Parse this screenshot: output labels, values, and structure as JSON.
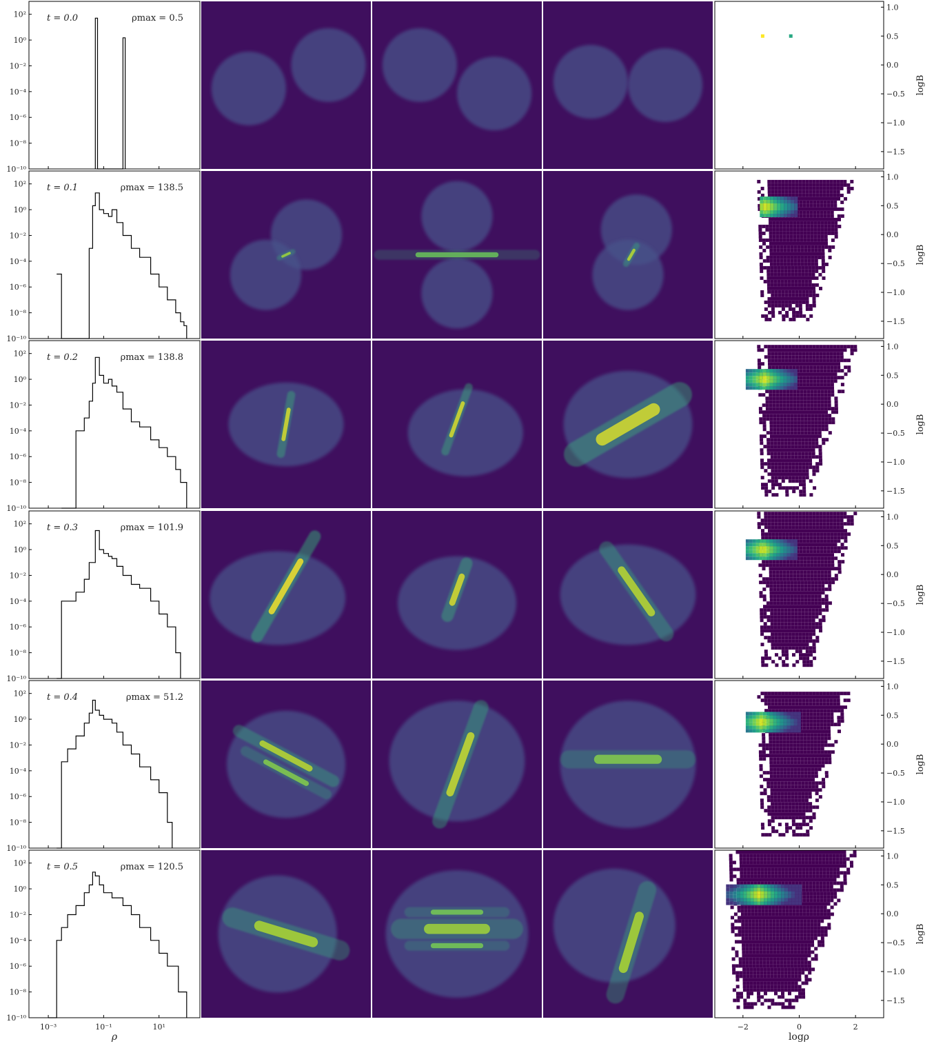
{
  "figure": {
    "x_label_hist": "ρ",
    "x_label_phase": "logρ",
    "y_label_phase": "logB",
    "hist_ytick_labels": [
      "10²",
      "10⁰",
      "10⁻²",
      "10⁻⁴",
      "10⁻⁶",
      "10⁻⁸",
      "10⁻¹⁰"
    ],
    "hist_xtick_labels": [
      "10⁻³",
      "10⁻¹",
      "10¹"
    ],
    "phase_ytick_labels": [
      "1.0",
      "0.5",
      "0.0",
      "−0.5",
      "−1.0",
      "−1.5"
    ],
    "phase_xtick_labels": [
      "−2",
      "0",
      "2"
    ]
  },
  "rows": [
    {
      "t_label": "t = 0.0",
      "rho_label": "ρmax = 0.5"
    },
    {
      "t_label": "t = 0.1",
      "rho_label": "ρmax = 138.5"
    },
    {
      "t_label": "t = 0.2",
      "rho_label": "ρmax = 138.8"
    },
    {
      "t_label": "t = 0.3",
      "rho_label": "ρmax = 101.9"
    },
    {
      "t_label": "t = 0.4",
      "rho_label": "ρmax = 51.2"
    },
    {
      "t_label": "t = 0.5",
      "rho_label": "ρmax = 120.5"
    }
  ],
  "colors": {
    "panel_bg": "#3f0f5e",
    "cloud": "#46518a",
    "filament": "#35b779",
    "peak": "#fde725",
    "hist_line": "#000000"
  },
  "chart_data": [
    {
      "type": "line",
      "title": "",
      "xlabel": "ρ",
      "ylabel": "",
      "xscale": "log",
      "yscale": "log",
      "xlim": [
        0.0002,
        300
      ],
      "ylim": [
        1e-10,
        1000
      ],
      "series": [
        {
          "label_index": 0,
          "x": [
            0.05,
            0.05,
            0.06,
            0.06,
            0.5,
            0.5,
            0.6,
            0.6
          ],
          "y": [
            1e-10,
            50,
            50,
            1e-10,
            1e-10,
            1.5,
            1.5,
            1e-10
          ]
        },
        {
          "label_index": 1,
          "x": [
            0.002,
            0.003,
            0.005,
            0.03,
            0.04,
            0.05,
            0.07,
            0.1,
            0.15,
            0.2,
            0.3,
            0.5,
            1,
            2,
            5,
            10,
            20,
            40,
            60,
            80,
            100
          ],
          "y": [
            1e-05,
            1e-10,
            1e-10,
            0.001,
            2,
            20,
            1,
            0.5,
            0.3,
            1,
            0.1,
            0.01,
            0.001,
            0.0002,
            1e-05,
            1e-06,
            1e-07,
            1e-08,
            2e-09,
            1e-09,
            1e-10
          ]
        },
        {
          "label_index": 2,
          "x": [
            0.003,
            0.01,
            0.02,
            0.03,
            0.04,
            0.05,
            0.07,
            0.1,
            0.15,
            0.2,
            0.3,
            0.5,
            1,
            2,
            5,
            10,
            20,
            40,
            60,
            100
          ],
          "y": [
            1e-10,
            0.0001,
            0.001,
            0.02,
            0.5,
            50,
            2,
            0.5,
            1,
            0.3,
            0.1,
            0.005,
            0.0005,
            0.0002,
            2e-05,
            5e-06,
            1e-06,
            1e-07,
            1e-08,
            1e-10
          ]
        },
        {
          "label_index": 3,
          "x": [
            0.002,
            0.003,
            0.005,
            0.01,
            0.02,
            0.03,
            0.05,
            0.07,
            0.1,
            0.15,
            0.2,
            0.3,
            0.5,
            1,
            2,
            5,
            10,
            20,
            40,
            60
          ],
          "y": [
            1e-10,
            0.0001,
            0.0001,
            0.0005,
            0.005,
            0.1,
            30,
            1,
            0.5,
            0.3,
            0.2,
            0.05,
            0.01,
            0.002,
            0.001,
            0.0001,
            1e-05,
            1e-06,
            1e-08,
            1e-10
          ]
        },
        {
          "label_index": 4,
          "x": [
            0.002,
            0.003,
            0.005,
            0.01,
            0.02,
            0.03,
            0.04,
            0.05,
            0.07,
            0.1,
            0.2,
            0.3,
            0.5,
            1,
            2,
            5,
            10,
            20,
            30
          ],
          "y": [
            1e-10,
            0.0005,
            0.005,
            0.05,
            0.5,
            3,
            30,
            5,
            2,
            1,
            0.5,
            0.1,
            0.01,
            0.002,
            0.0002,
            2e-05,
            2e-06,
            1e-08,
            1e-10
          ]
        },
        {
          "label_index": 5,
          "x": [
            0.001,
            0.002,
            0.003,
            0.005,
            0.01,
            0.02,
            0.03,
            0.04,
            0.05,
            0.07,
            0.1,
            0.2,
            0.5,
            1,
            2,
            5,
            10,
            20,
            50,
            100
          ],
          "y": [
            1e-10,
            0.0001,
            0.001,
            0.01,
            0.05,
            0.5,
            2,
            20,
            10,
            2,
            0.5,
            0.2,
            0.05,
            0.01,
            0.001,
            0.0001,
            1e-05,
            1e-06,
            1e-08,
            1e-10
          ]
        }
      ]
    },
    {
      "type": "heatmap",
      "title": "",
      "xlabel": "logρ",
      "ylabel": "logB",
      "xlim": [
        -3.0,
        3.0
      ],
      "ylim": [
        -1.8,
        1.1
      ],
      "colormap": "viridis",
      "panels": [
        {
          "row": 0,
          "points": [
            {
              "x": -1.3,
              "y": 0.5,
              "level": 1.0
            },
            {
              "x": -0.3,
              "y": 0.5,
              "level": 0.6
            }
          ]
        },
        {
          "row": 1,
          "region": {
            "x0": -1.5,
            "x1": 1.9,
            "yb": -1.5,
            "yt": 0.9
          },
          "hotspot": {
            "x0": -1.4,
            "x1": -0.1,
            "y0": 0.3,
            "y1": 0.6,
            "peak_x": -1.25
          }
        },
        {
          "row": 2,
          "region": {
            "x0": -1.5,
            "x1": 2.0,
            "yb": -1.6,
            "yt": 1.0
          },
          "hotspot": {
            "x0": -1.9,
            "x1": -0.1,
            "y0": 0.25,
            "y1": 0.55,
            "peak_x": -1.3
          }
        },
        {
          "row": 3,
          "region": {
            "x0": -1.5,
            "x1": 2.0,
            "yb": -1.6,
            "yt": 1.05
          },
          "hotspot": {
            "x0": -1.9,
            "x1": -0.1,
            "y0": 0.25,
            "y1": 0.55,
            "peak_x": -1.35
          }
        },
        {
          "row": 4,
          "region": {
            "x0": -1.5,
            "x1": 1.8,
            "yb": -1.6,
            "yt": 0.9
          },
          "hotspot": {
            "x0": -1.9,
            "x1": 0.0,
            "y0": 0.2,
            "y1": 0.5,
            "peak_x": -1.4
          }
        },
        {
          "row": 5,
          "region": {
            "x0": -2.5,
            "x1": 2.0,
            "yb": -1.65,
            "yt": 1.05
          },
          "hotspot": {
            "x0": -2.6,
            "x1": 0.0,
            "y0": 0.15,
            "y1": 0.45,
            "peak_x": -1.5
          }
        }
      ]
    },
    {
      "type": "image",
      "title": "",
      "description_colormap": "viridis",
      "panels": [
        {
          "row": 0,
          "col": 0,
          "clouds": [
            [
              0.28,
              0.52,
              0.22,
              0.22
            ],
            [
              0.75,
              0.38,
              0.22,
              0.22
            ]
          ],
          "streaks": []
        },
        {
          "row": 0,
          "col": 1,
          "clouds": [
            [
              0.28,
              0.38,
              0.22,
              0.22
            ],
            [
              0.72,
              0.55,
              0.22,
              0.22
            ]
          ],
          "streaks": []
        },
        {
          "row": 0,
          "col": 2,
          "clouds": [
            [
              0.28,
              0.48,
              0.22,
              0.22
            ],
            [
              0.72,
              0.5,
              0.22,
              0.22
            ]
          ],
          "streaks": []
        },
        {
          "row": 1,
          "col": 0,
          "clouds": [
            [
              0.62,
              0.38,
              0.21,
              0.21
            ],
            [
              0.38,
              0.62,
              0.21,
              0.21
            ]
          ],
          "streaks": [
            [
              0.5,
              0.5,
              0.12,
              0.005,
              -25,
              0.7
            ]
          ]
        },
        {
          "row": 1,
          "col": 1,
          "clouds": [
            [
              0.5,
              0.27,
              0.21,
              0.21
            ],
            [
              0.5,
              0.73,
              0.21,
              0.21
            ]
          ],
          "streaks": [
            [
              0.5,
              0.5,
              0.98,
              0.01,
              0,
              0.5
            ]
          ]
        },
        {
          "row": 1,
          "col": 2,
          "clouds": [
            [
              0.55,
              0.35,
              0.21,
              0.21
            ],
            [
              0.5,
              0.62,
              0.21,
              0.21
            ]
          ],
          "streaks": [
            [
              0.52,
              0.5,
              0.16,
              0.006,
              -60,
              0.8
            ]
          ]
        },
        {
          "row": 2,
          "col": 0,
          "clouds": [
            [
              0.5,
              0.5,
              0.34,
              0.25
            ]
          ],
          "streaks": [
            [
              0.5,
              0.5,
              0.4,
              0.008,
              -80,
              0.9
            ]
          ]
        },
        {
          "row": 2,
          "col": 1,
          "clouds": [
            [
              0.55,
              0.55,
              0.34,
              0.26
            ]
          ],
          "streaks": [
            [
              0.5,
              0.47,
              0.45,
              0.008,
              -70,
              0.9
            ]
          ]
        },
        {
          "row": 2,
          "col": 2,
          "clouds": [
            [
              0.5,
              0.5,
              0.38,
              0.32
            ]
          ],
          "streaks": [
            [
              0.5,
              0.5,
              0.85,
              0.025,
              -30,
              0.9
            ]
          ]
        },
        {
          "row": 3,
          "col": 0,
          "clouds": [
            [
              0.45,
              0.52,
              0.4,
              0.28
            ]
          ],
          "streaks": [
            [
              0.5,
              0.45,
              0.75,
              0.012,
              -60,
              1.0
            ]
          ]
        },
        {
          "row": 3,
          "col": 1,
          "clouds": [
            [
              0.5,
              0.55,
              0.35,
              0.28
            ]
          ],
          "streaks": [
            [
              0.5,
              0.47,
              0.4,
              0.012,
              -70,
              0.9
            ]
          ]
        },
        {
          "row": 3,
          "col": 2,
          "clouds": [
            [
              0.5,
              0.5,
              0.4,
              0.3
            ]
          ],
          "streaks": [
            [
              0.55,
              0.48,
              0.7,
              0.015,
              55,
              0.8
            ]
          ]
        },
        {
          "row": 4,
          "col": 0,
          "clouds": [
            [
              0.5,
              0.5,
              0.35,
              0.32
            ]
          ],
          "streaks": [
            [
              0.5,
              0.45,
              0.7,
              0.012,
              28,
              0.8
            ],
            [
              0.5,
              0.55,
              0.6,
              0.01,
              28,
              0.6
            ]
          ]
        },
        {
          "row": 4,
          "col": 1,
          "clouds": [
            [
              0.5,
              0.48,
              0.4,
              0.36
            ]
          ],
          "streaks": [
            [
              0.52,
              0.5,
              0.8,
              0.015,
              -70,
              0.85
            ]
          ]
        },
        {
          "row": 4,
          "col": 2,
          "clouds": [
            [
              0.5,
              0.5,
              0.4,
              0.38
            ]
          ],
          "streaks": [
            [
              0.5,
              0.47,
              0.8,
              0.018,
              0,
              0.6
            ]
          ]
        },
        {
          "row": 5,
          "col": 0,
          "clouds": [
            [
              0.45,
              0.5,
              0.35,
              0.35
            ]
          ],
          "streaks": [
            [
              0.5,
              0.5,
              0.78,
              0.02,
              17,
              0.75
            ]
          ]
        },
        {
          "row": 5,
          "col": 1,
          "clouds": [
            [
              0.5,
              0.5,
              0.42,
              0.38
            ]
          ],
          "streaks": [
            [
              0.5,
              0.47,
              0.78,
              0.02,
              0,
              0.7
            ],
            [
              0.5,
              0.37,
              0.62,
              0.01,
              0,
              0.55
            ],
            [
              0.5,
              0.57,
              0.62,
              0.01,
              0,
              0.55
            ]
          ]
        },
        {
          "row": 5,
          "col": 2,
          "clouds": [
            [
              0.42,
              0.45,
              0.36,
              0.34
            ]
          ],
          "streaks": [
            [
              0.52,
              0.55,
              0.75,
              0.018,
              -73,
              0.75
            ]
          ]
        }
      ]
    }
  ]
}
